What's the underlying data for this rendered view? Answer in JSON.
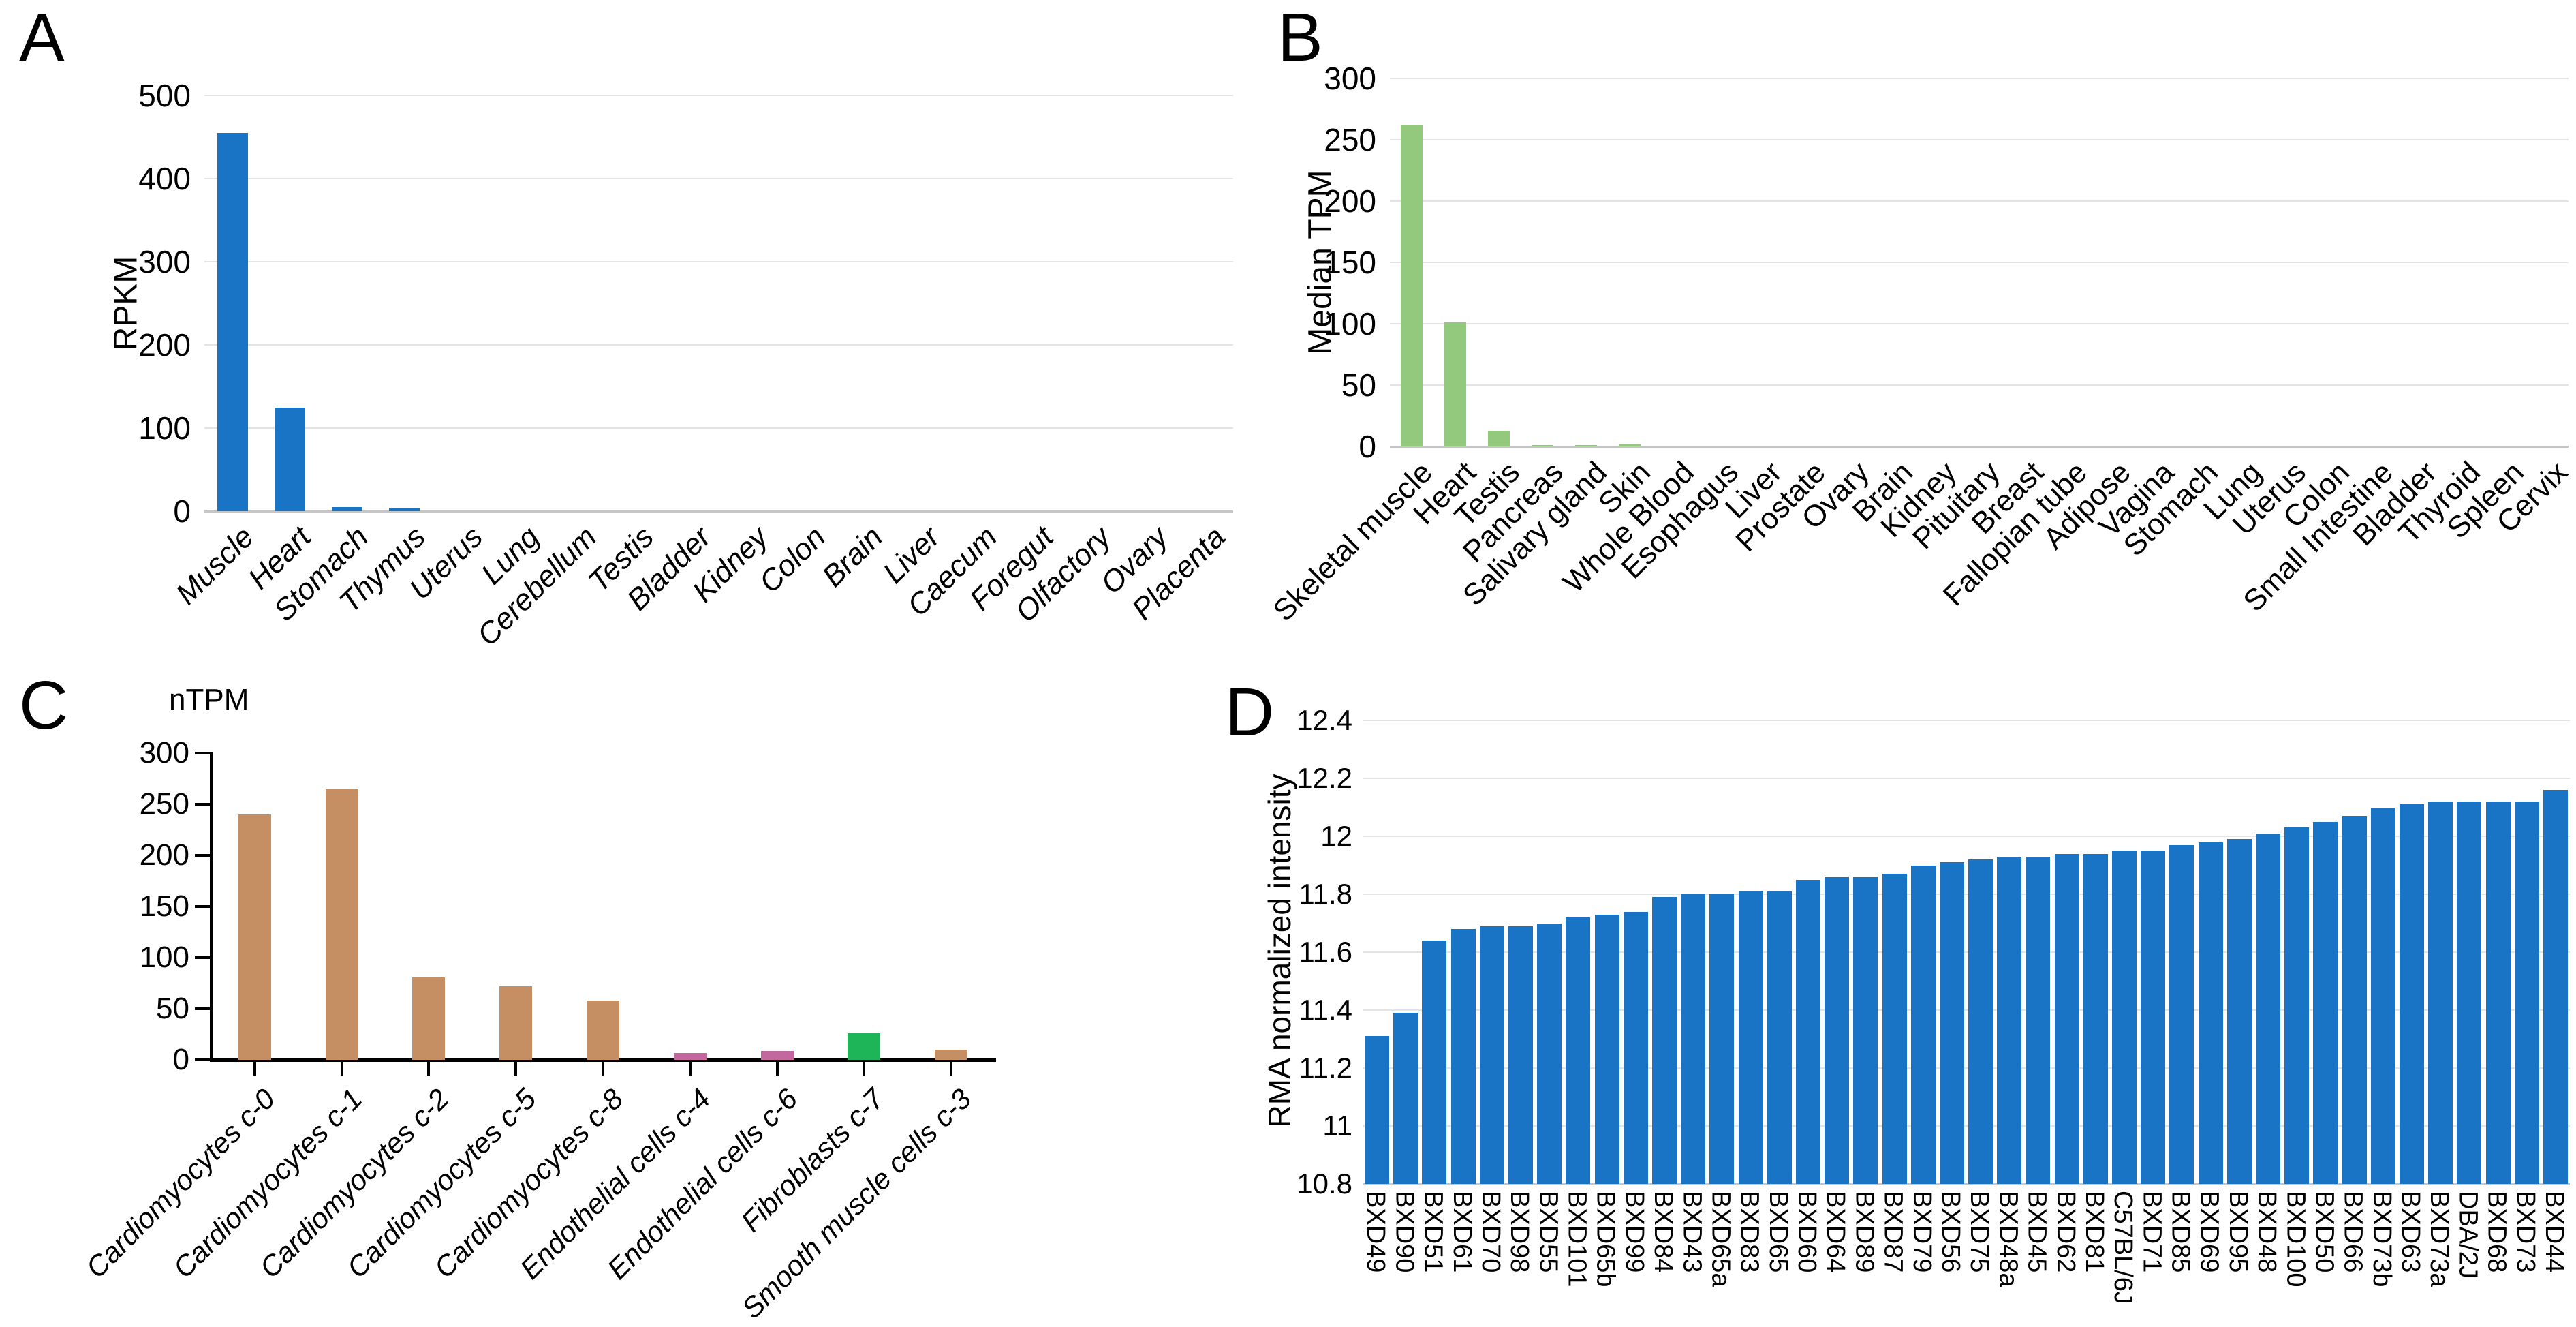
{
  "figure": {
    "background": "#ffffff",
    "panel_letters": [
      "A",
      "B",
      "C",
      "D"
    ]
  },
  "colors": {
    "blue": "#1974C5",
    "green_light": "#92C97C",
    "tan": "#C58E63",
    "pink": "#C4679E",
    "green_bright": "#1DB557",
    "gridline": "#e4e4e4",
    "baseline": "#c6c6c6",
    "axis_black": "#000000"
  },
  "chart_data": [
    {
      "type": "bar",
      "panel_label": "A",
      "ylabel": "RPKM",
      "bar_color": "#1974C5",
      "ylim": [
        0,
        500
      ],
      "yticks": [
        {
          "v": 0,
          "t": "0"
        },
        {
          "v": 100,
          "t": "100"
        },
        {
          "v": 200,
          "t": "200"
        },
        {
          "v": 300,
          "t": "300"
        },
        {
          "v": 400,
          "t": "400"
        },
        {
          "v": 500,
          "t": "500"
        }
      ],
      "grid": true,
      "categories": [
        "Muscle",
        "Heart",
        "Stomach",
        "Thymus",
        "Uterus",
        "Lung",
        "Cerebellum",
        "Testis",
        "Bladder",
        "Kidney",
        "Colon",
        "Brain",
        "Liver",
        "Caecum",
        "Foregut",
        "Olfactory",
        "Ovary",
        "Placenta"
      ],
      "values": [
        455,
        125,
        5,
        4,
        0,
        0,
        0,
        0,
        0,
        0,
        0,
        0,
        0,
        0,
        0,
        0,
        0,
        0
      ],
      "label_style": "italic",
      "label_rotation": -45
    },
    {
      "type": "bar",
      "panel_label": "B",
      "ylabel": "Median TPM",
      "bar_color": "#92C97C",
      "ylim": [
        0,
        300
      ],
      "yticks": [
        {
          "v": 0,
          "t": "0"
        },
        {
          "v": 50,
          "t": "50"
        },
        {
          "v": 100,
          "t": "100"
        },
        {
          "v": 150,
          "t": "150"
        },
        {
          "v": 200,
          "t": "200"
        },
        {
          "v": 250,
          "t": "250"
        },
        {
          "v": 300,
          "t": "300"
        }
      ],
      "grid": true,
      "categories": [
        "Skeletal muscle",
        "Heart",
        "Testis",
        "Pancreas",
        "Salivary gland",
        "Skin",
        "Whole Blood",
        "Esophagus",
        "Liver",
        "Prostate",
        "Ovary",
        "Brain",
        "Kidney",
        "Pituitary",
        "Breast",
        "Fallopian tube",
        "Adipose",
        "Vagina",
        "Stomach",
        "Lung",
        "Uterus",
        "Colon",
        "Small Intestine",
        "Bladder",
        "Thyroid",
        "Spleen",
        "Cervix"
      ],
      "values": [
        262,
        101,
        13,
        1,
        1,
        1.5,
        0,
        0,
        0,
        0,
        0,
        0,
        0,
        0,
        0,
        0,
        0,
        0,
        0,
        0,
        0,
        0,
        0,
        0,
        0,
        0,
        0
      ],
      "label_style": "normal",
      "label_rotation": -45
    },
    {
      "type": "bar",
      "panel_label": "C",
      "ylabel": "nTPM",
      "ylim": [
        0,
        300
      ],
      "yticks": [
        {
          "v": 0,
          "t": "0"
        },
        {
          "v": 50,
          "t": "50"
        },
        {
          "v": 100,
          "t": "100"
        },
        {
          "v": 150,
          "t": "150"
        },
        {
          "v": 200,
          "t": "200"
        },
        {
          "v": 250,
          "t": "250"
        },
        {
          "v": 300,
          "t": "300"
        }
      ],
      "grid": false,
      "categories": [
        "Cardiomyocytes c-0",
        "Cardiomyocytes c-1",
        "Cardiomyocytes c-2",
        "Cardiomyocytes c-5",
        "Cardiomyocytes c-8",
        "Endothelial cells c-4",
        "Endothelial cells c-6",
        "Fibroblasts c-7",
        "Smooth muscle cells c-3"
      ],
      "values": [
        240,
        265,
        81,
        72,
        58,
        7,
        9,
        26,
        10
      ],
      "bar_colors": [
        "#C58E63",
        "#C58E63",
        "#C58E63",
        "#C58E63",
        "#C58E63",
        "#C4679E",
        "#C4679E",
        "#1DB557",
        "#C58E63"
      ],
      "label_style": "italic",
      "label_rotation": -45
    },
    {
      "type": "bar",
      "panel_label": "D",
      "ylabel": "RMA normalized intensity",
      "bar_color": "#1974C5",
      "ylim": [
        10.8,
        12.4
      ],
      "yticks": [
        {
          "v": 10.8,
          "t": "10.8"
        },
        {
          "v": 11,
          "t": "11"
        },
        {
          "v": 11.2,
          "t": "11.2"
        },
        {
          "v": 11.4,
          "t": "11.4"
        },
        {
          "v": 11.6,
          "t": "11.6"
        },
        {
          "v": 11.8,
          "t": "11.8"
        },
        {
          "v": 12,
          "t": "12"
        },
        {
          "v": 12.2,
          "t": "12.2"
        },
        {
          "v": 12.4,
          "t": "12.4"
        }
      ],
      "grid": true,
      "categories": [
        "BXD49",
        "BXD90",
        "BXD51",
        "BXD61",
        "BXD70",
        "BXD98",
        "BXD55",
        "BXD101",
        "BXD65b",
        "BXD99",
        "BXD84",
        "BXD43",
        "BXD65a",
        "BXD83",
        "BXD65",
        "BXD60",
        "BXD64",
        "BXD89",
        "BXD87",
        "BXD79",
        "BXD56",
        "BXD75",
        "BXD48a",
        "BXD45",
        "BXD62",
        "BXD81",
        "C57BL/6J",
        "BXD71",
        "BXD85",
        "BXD69",
        "BXD95",
        "BXD48",
        "BXD100",
        "BXD50",
        "BXD66",
        "BXD73b",
        "BXD63",
        "BXD73a",
        "DBA/2J",
        "BXD68",
        "BXD73",
        "BXD44"
      ],
      "values": [
        11.31,
        11.39,
        11.64,
        11.68,
        11.69,
        11.69,
        11.7,
        11.72,
        11.73,
        11.74,
        11.79,
        11.8,
        11.8,
        11.81,
        11.81,
        11.85,
        11.86,
        11.86,
        11.87,
        11.9,
        11.91,
        11.92,
        11.93,
        11.93,
        11.94,
        11.94,
        11.95,
        11.95,
        11.97,
        11.98,
        11.99,
        12.01,
        12.03,
        12.05,
        12.07,
        12.1,
        12.11,
        12.12,
        12.12,
        12.12,
        12.12,
        12.16
      ],
      "label_style": "normal",
      "label_rotation": -90
    }
  ]
}
